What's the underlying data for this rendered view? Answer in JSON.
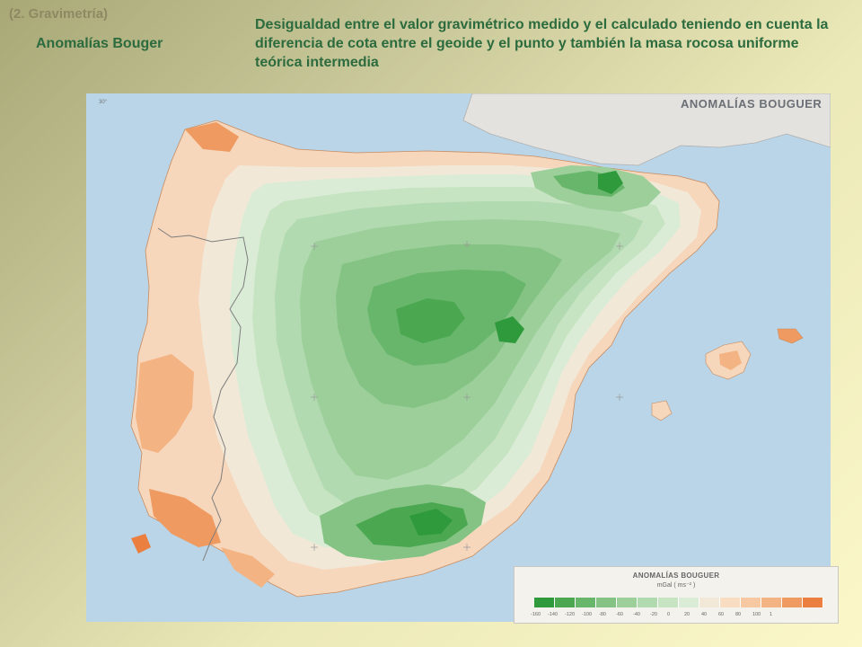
{
  "header": {
    "section_label": "(2. Gravimetría)",
    "title": "Anomalías Bouger",
    "description": "Desigualdad entre el valor gravimétrico medido y el calculado teniendo en cuenta la diferencia de cota entre el geoide y el punto y también la masa rocosa uniforme teórica intermedia"
  },
  "map": {
    "title": "ANOMALÍAS BOUGUER",
    "corner_label": "30°",
    "colors": {
      "sea": "#b9d5e7",
      "france": "#e6e4df",
      "border_line": "#7d7d7d"
    }
  },
  "legend": {
    "title": "ANOMALÍAS BOUGUER",
    "unit": "mGal ( ms⁻² )",
    "classes": [
      {
        "label": "-160",
        "color": "#2f9a3b"
      },
      {
        "label": "-140",
        "color": "#4ba851"
      },
      {
        "label": "-120",
        "color": "#68b66b"
      },
      {
        "label": "-100",
        "color": "#84c384"
      },
      {
        "label": "-80",
        "color": "#9ccf9a"
      },
      {
        "label": "-60",
        "color": "#b2dab0"
      },
      {
        "label": "-40",
        "color": "#c6e3c2"
      },
      {
        "label": "-20",
        "color": "#dbecd6"
      },
      {
        "label": "0",
        "color": "#f2e8d8"
      },
      {
        "label": "20",
        "color": "#f8ddc2"
      },
      {
        "label": "40",
        "color": "#f7c9a2"
      },
      {
        "label": "60",
        "color": "#f4b383"
      },
      {
        "label": "80",
        "color": "#ef9a61"
      },
      {
        "label": "100",
        "color": "#ea7f40"
      },
      {
        "label": "1",
        "color": ""
      }
    ]
  }
}
